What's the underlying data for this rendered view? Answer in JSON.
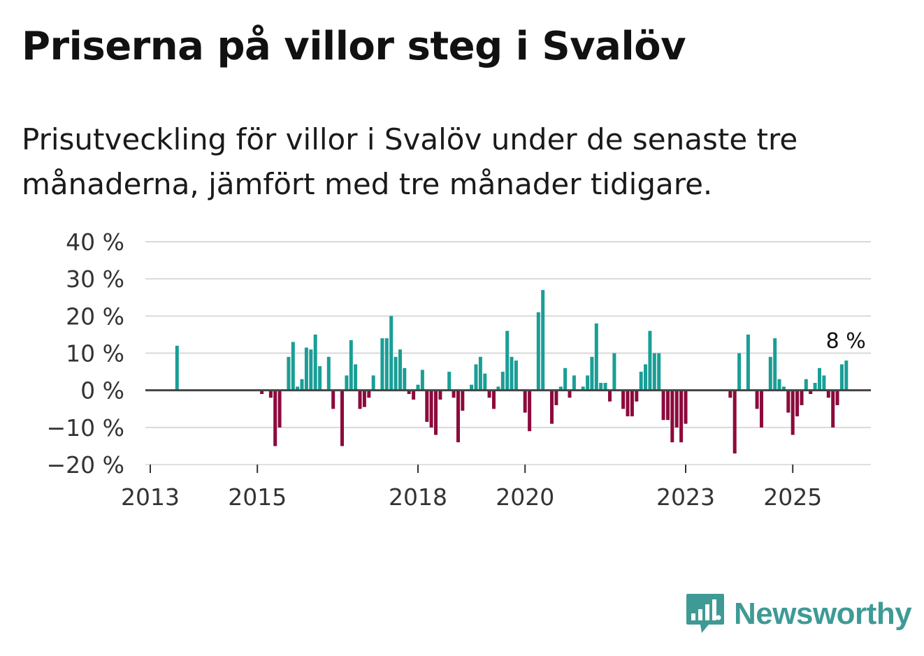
{
  "title": "Priserna på villor steg i Svalöv",
  "subtitle": "Prisutveckling för villor i Svalöv under de senaste tre månaderna, jämfört med tre månader tidigare.",
  "brand": {
    "name": "Newsworthy",
    "icon": "newsworthy-chart-bubble-icon",
    "color": "#3f9a96"
  },
  "colors": {
    "positive": "#1a9e96",
    "negative": "#8c0a3c",
    "grid": "#d9d9d9",
    "zero": "#444444"
  },
  "chart_data": {
    "type": "bar",
    "title": "Priserna på villor steg i Svalöv",
    "ylabel": "",
    "xlabel": "",
    "ylim": [
      -20,
      40
    ],
    "yticks": [
      40,
      30,
      20,
      10,
      0,
      -10,
      -20
    ],
    "ytick_labels": [
      "40 %",
      "30 %",
      "20 %",
      "10 %",
      "0 %",
      "−10 %",
      "−20 %"
    ],
    "xticks": [
      2013,
      2015,
      2018,
      2020,
      2023,
      2025
    ],
    "xtick_labels": [
      "2013",
      "2015",
      "2018",
      "2020",
      "2023",
      "2025"
    ],
    "start": {
      "year": 2013,
      "month": 1
    },
    "unit": "%",
    "series": [
      {
        "name": "Prisutveckling",
        "values": [
          null,
          null,
          null,
          null,
          null,
          null,
          12,
          null,
          null,
          null,
          null,
          null,
          null,
          null,
          null,
          null,
          null,
          null,
          null,
          null,
          null,
          null,
          null,
          null,
          null,
          -1,
          null,
          -2,
          -15,
          -10,
          null,
          9,
          13,
          1,
          3,
          11.5,
          11,
          15,
          6.5,
          null,
          9,
          -5,
          null,
          -15,
          4,
          13.5,
          7,
          -5,
          -4.5,
          -2,
          4,
          null,
          14,
          14,
          20,
          9,
          11,
          6,
          -1,
          -2.5,
          1.5,
          5.5,
          -8.5,
          -10,
          -12,
          -2.5,
          null,
          5,
          -2,
          -14,
          -5.5,
          null,
          1.5,
          7,
          9,
          4.5,
          -2,
          -5,
          1,
          5,
          16,
          9,
          8,
          null,
          -6,
          -11,
          null,
          21,
          27,
          null,
          -9,
          -4,
          1,
          6,
          -2,
          4,
          null,
          1,
          4,
          9,
          18,
          2,
          2,
          -3,
          10,
          null,
          -5,
          -7,
          -7,
          -3,
          5,
          7,
          16,
          10,
          10,
          -8,
          -8,
          -14,
          -10,
          -14,
          -9,
          null,
          null,
          null,
          null,
          null,
          null,
          null,
          null,
          null,
          -2,
          -17,
          10,
          null,
          15,
          null,
          -5,
          -10,
          null,
          9,
          14,
          3,
          1,
          -6,
          -12,
          -7,
          -4,
          3,
          -1,
          2,
          6,
          4,
          -2,
          -10,
          -4,
          7,
          8
        ]
      }
    ],
    "annotations": [
      {
        "text": "8 %",
        "label": "last-value"
      }
    ]
  }
}
